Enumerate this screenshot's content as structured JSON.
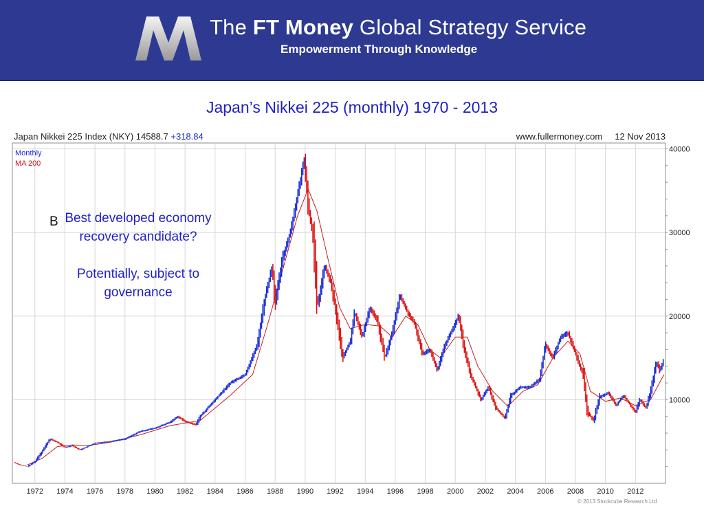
{
  "header": {
    "brand_prefix": "The ",
    "brand_bold": "FT Money",
    "brand_suffix": " Global Strategy Service",
    "tagline": "Empowerment Through Knowledge"
  },
  "slide_title": "Japan’s Nikkei 225 (monthly) 1970 - 2013",
  "chart_header": {
    "index_label": "Japan Nikkei 225 Index (NKY) 14588.7",
    "change": "+318.84",
    "website": "www.fullermoney.com",
    "date": "12 Nov 2013"
  },
  "annotation": {
    "line1": "Best developed economy",
    "line2": "recovery candidate?",
    "line3": "Potentially, subject to",
    "line4": "governance",
    "stray_char": "B"
  },
  "copyright": "© 2013 Stockcube Research Ltd",
  "colors": {
    "banner": "#2e3a92",
    "title": "#1f1fc8",
    "up": "#1a2cd6",
    "down": "#e01010",
    "ma": "#c81e1e"
  },
  "chart_data": {
    "type": "line",
    "series_style": "monthly bars (blue up, red down)",
    "legend": [
      "Monthly",
      "MA 200"
    ],
    "legend_placement": "top-left",
    "y_axis_side": "right",
    "ylim": [
      0,
      40700
    ],
    "y_ticks": [
      10000,
      20000,
      30000,
      40000
    ],
    "y_tick_labels": [
      "10000",
      "20000",
      "30000",
      "40000"
    ],
    "xlim": [
      1970.5,
      2014.0
    ],
    "x_ticks": [
      1972,
      1974,
      1976,
      1978,
      1980,
      1982,
      1984,
      1986,
      1988,
      1990,
      1992,
      1994,
      1996,
      1998,
      2000,
      2002,
      2004,
      2006,
      2008,
      2010,
      2012
    ],
    "x_tick_labels": [
      "1972",
      "1974",
      "1976",
      "1978",
      "1980",
      "1982",
      "1984",
      "1986",
      "1988",
      "1990",
      "1992",
      "1994",
      "1996",
      "1998",
      "2000",
      "2002",
      "2004",
      "2006",
      "2008",
      "2010",
      "2012"
    ],
    "grid": true,
    "series": [
      {
        "name": "Monthly",
        "points": [
          [
            1970.6,
            2500
          ],
          [
            1971.0,
            2200
          ],
          [
            1971.5,
            2000
          ],
          [
            1972.0,
            2600
          ],
          [
            1972.5,
            3900
          ],
          [
            1973.0,
            5300
          ],
          [
            1973.5,
            4900
          ],
          [
            1974.0,
            4300
          ],
          [
            1974.5,
            4500
          ],
          [
            1975.0,
            4000
          ],
          [
            1975.5,
            4400
          ],
          [
            1976.0,
            4800
          ],
          [
            1977.0,
            5000
          ],
          [
            1978.0,
            5300
          ],
          [
            1979.0,
            6200
          ],
          [
            1980.0,
            6600
          ],
          [
            1981.0,
            7300
          ],
          [
            1981.5,
            8000
          ],
          [
            1982.0,
            7400
          ],
          [
            1982.7,
            7000
          ],
          [
            1983.0,
            8000
          ],
          [
            1984.0,
            10000
          ],
          [
            1985.0,
            12000
          ],
          [
            1986.0,
            13000
          ],
          [
            1986.8,
            16500
          ],
          [
            1987.3,
            22000
          ],
          [
            1987.8,
            26000
          ],
          [
            1988.0,
            21500
          ],
          [
            1988.5,
            27000
          ],
          [
            1989.0,
            30000
          ],
          [
            1989.5,
            34500
          ],
          [
            1989.95,
            38900
          ],
          [
            1990.2,
            33000
          ],
          [
            1990.5,
            30000
          ],
          [
            1990.8,
            21000
          ],
          [
            1991.3,
            26000
          ],
          [
            1991.7,
            24000
          ],
          [
            1992.0,
            21000
          ],
          [
            1992.5,
            15000
          ],
          [
            1993.0,
            17000
          ],
          [
            1993.3,
            20500
          ],
          [
            1993.8,
            17500
          ],
          [
            1994.3,
            21000
          ],
          [
            1994.8,
            19500
          ],
          [
            1995.3,
            15000
          ],
          [
            1995.8,
            18000
          ],
          [
            1996.3,
            22500
          ],
          [
            1996.8,
            20500
          ],
          [
            1997.3,
            19000
          ],
          [
            1997.8,
            15500
          ],
          [
            1998.3,
            16000
          ],
          [
            1998.8,
            13500
          ],
          [
            1999.3,
            16500
          ],
          [
            1999.7,
            18000
          ],
          [
            2000.2,
            20000
          ],
          [
            2000.6,
            16000
          ],
          [
            2001.0,
            13000
          ],
          [
            2001.7,
            10000
          ],
          [
            2002.2,
            11500
          ],
          [
            2002.7,
            9000
          ],
          [
            2003.3,
            7800
          ],
          [
            2003.7,
            10500
          ],
          [
            2004.3,
            11500
          ],
          [
            2005.0,
            11500
          ],
          [
            2005.6,
            12500
          ],
          [
            2006.0,
            16500
          ],
          [
            2006.5,
            15000
          ],
          [
            2007.0,
            17500
          ],
          [
            2007.5,
            18000
          ],
          [
            2007.9,
            16000
          ],
          [
            2008.5,
            13000
          ],
          [
            2008.8,
            8500
          ],
          [
            2009.2,
            7500
          ],
          [
            2009.6,
            10300
          ],
          [
            2010.2,
            10800
          ],
          [
            2010.7,
            9300
          ],
          [
            2011.2,
            10500
          ],
          [
            2011.6,
            9500
          ],
          [
            2012.0,
            8500
          ],
          [
            2012.3,
            10000
          ],
          [
            2012.7,
            9000
          ],
          [
            2013.0,
            11000
          ],
          [
            2013.4,
            14500
          ],
          [
            2013.6,
            13500
          ],
          [
            2013.86,
            14588.7
          ]
        ]
      },
      {
        "name": "MA 200",
        "points": [
          [
            1971.5,
            2200
          ],
          [
            1972.5,
            3000
          ],
          [
            1973.5,
            4400
          ],
          [
            1974.5,
            4600
          ],
          [
            1975.5,
            4500
          ],
          [
            1977.0,
            4900
          ],
          [
            1979.0,
            5800
          ],
          [
            1981.0,
            6900
          ],
          [
            1983.0,
            7500
          ],
          [
            1985.0,
            10500
          ],
          [
            1986.5,
            13000
          ],
          [
            1987.5,
            19000
          ],
          [
            1988.5,
            25500
          ],
          [
            1989.5,
            32000
          ],
          [
            1990.2,
            35200
          ],
          [
            1990.8,
            32500
          ],
          [
            1991.5,
            27000
          ],
          [
            1992.3,
            21000
          ],
          [
            1993.0,
            18500
          ],
          [
            1994.0,
            19000
          ],
          [
            1995.0,
            18800
          ],
          [
            1995.8,
            17500
          ],
          [
            1996.7,
            20000
          ],
          [
            1997.5,
            19000
          ],
          [
            1998.3,
            16000
          ],
          [
            1999.0,
            15000
          ],
          [
            2000.0,
            17500
          ],
          [
            2000.8,
            17500
          ],
          [
            2001.5,
            14000
          ],
          [
            2002.5,
            11000
          ],
          [
            2003.5,
            9200
          ],
          [
            2004.5,
            11000
          ],
          [
            2005.5,
            11800
          ],
          [
            2006.5,
            15000
          ],
          [
            2007.5,
            17000
          ],
          [
            2008.3,
            15500
          ],
          [
            2009.0,
            11000
          ],
          [
            2010.0,
            9800
          ],
          [
            2011.0,
            10200
          ],
          [
            2012.0,
            9300
          ],
          [
            2013.0,
            10000
          ],
          [
            2013.9,
            13000
          ]
        ]
      }
    ]
  }
}
